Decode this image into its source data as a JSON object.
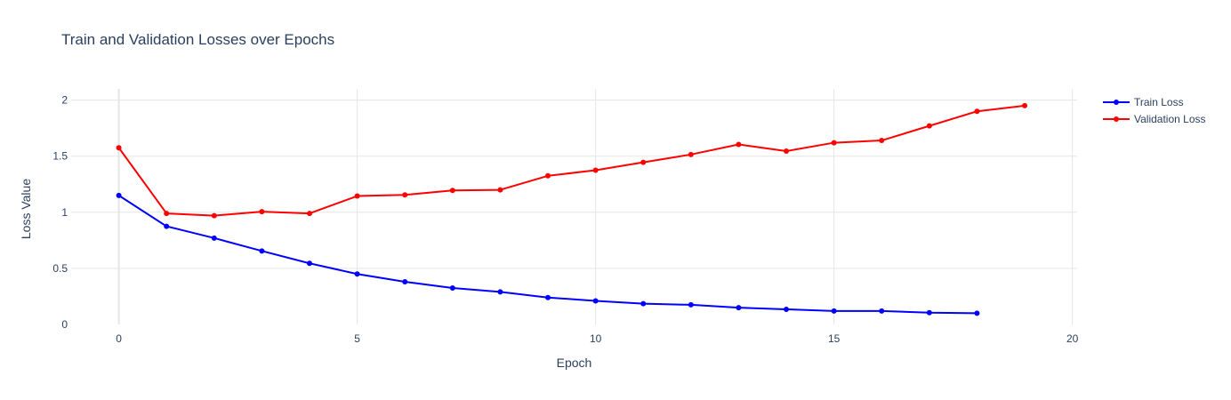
{
  "chart_data": {
    "type": "line",
    "title": "Train and Validation Losses over Epochs",
    "xlabel": "Epoch",
    "ylabel": "Loss Value",
    "xlim": [
      -1,
      20.1
    ],
    "ylim": [
      0,
      2.1
    ],
    "x_ticks": [
      0,
      5,
      10,
      15,
      20
    ],
    "y_ticks": [
      0,
      0.5,
      1,
      1.5,
      2
    ],
    "x_tick_labels": [
      "0",
      "5",
      "10",
      "15",
      "20"
    ],
    "y_tick_labels": [
      "0",
      "0.5",
      "1",
      "1.5",
      "2"
    ],
    "grid": true,
    "legend_position": "top-right",
    "series": [
      {
        "name": "Train Loss",
        "color": "#0000ff",
        "x": [
          0,
          1,
          2,
          3,
          4,
          5,
          6,
          7,
          8,
          9,
          10,
          11,
          12,
          13,
          14,
          15,
          16,
          17,
          18
        ],
        "y": [
          1.15,
          0.875,
          0.77,
          0.655,
          0.545,
          0.45,
          0.38,
          0.325,
          0.29,
          0.24,
          0.21,
          0.185,
          0.175,
          0.15,
          0.135,
          0.12,
          0.12,
          0.105,
          0.1
        ]
      },
      {
        "name": "Validation Loss",
        "color": "#ff0000",
        "x": [
          0,
          1,
          2,
          3,
          4,
          5,
          6,
          7,
          8,
          9,
          10,
          11,
          12,
          13,
          14,
          15,
          16,
          17,
          18,
          19
        ],
        "y": [
          1.575,
          0.99,
          0.97,
          1.005,
          0.99,
          1.145,
          1.155,
          1.195,
          1.2,
          1.325,
          1.375,
          1.445,
          1.515,
          1.605,
          1.545,
          1.62,
          1.64,
          1.77,
          1.9,
          1.95
        ]
      }
    ]
  }
}
